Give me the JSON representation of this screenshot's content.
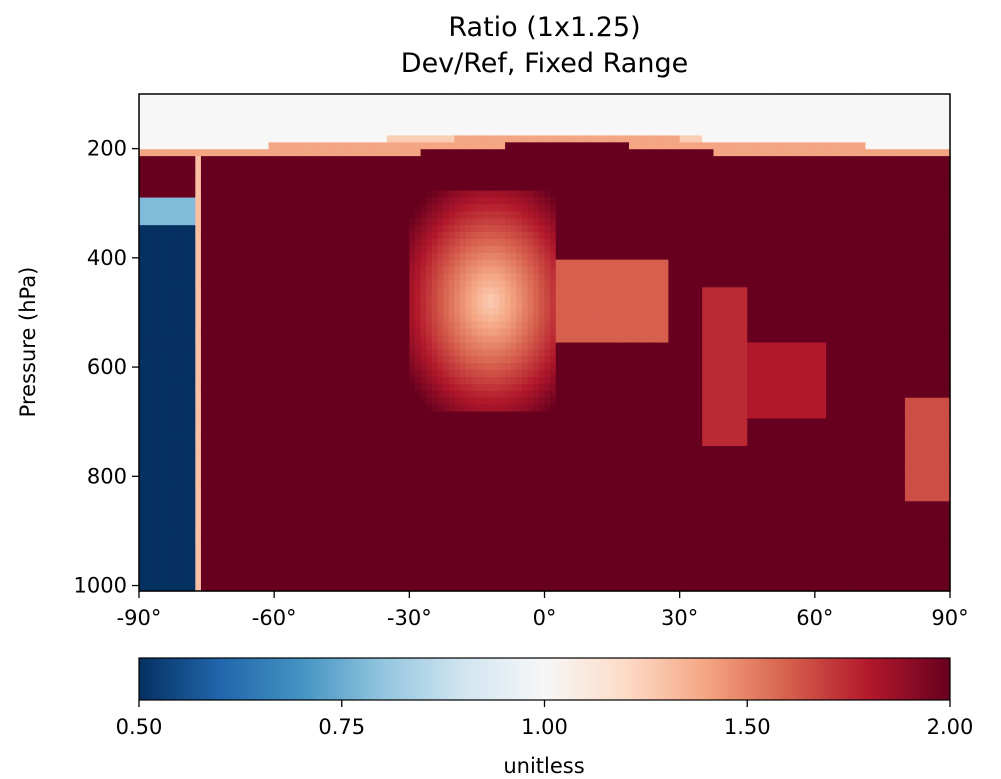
{
  "chart_data": {
    "type": "heatmap",
    "title": "Ratio (1x1.25)",
    "subtitle": "Dev/Ref, Fixed Range",
    "ylabel": "Pressure (hPa)",
    "xlabel": "",
    "x_ticks": [
      "-90°",
      "-60°",
      "-30°",
      "0°",
      "30°",
      "60°",
      "90°"
    ],
    "x_tick_values": [
      -90,
      -60,
      -30,
      0,
      30,
      60,
      90
    ],
    "y_ticks": [
      "200",
      "400",
      "600",
      "800",
      "1000"
    ],
    "y_tick_values": [
      200,
      400,
      600,
      800,
      1000
    ],
    "xlim": [
      -90,
      90
    ],
    "ylim": [
      1010,
      100
    ],
    "colorbar": {
      "label": "unitless",
      "ticks": [
        "0.50",
        "0.75",
        "1.00",
        "1.50",
        "2.00"
      ],
      "range": [
        0.5,
        2.0
      ],
      "colormap": "RdBu_r"
    },
    "colors": {
      "low": "#053061",
      "mid": "#f7f7f7",
      "high": "#67001f"
    },
    "regions": [
      {
        "desc": "upper layer",
        "lat": [
          -90,
          90
        ],
        "p": [
          100,
          200
        ],
        "value": 1.0
      },
      {
        "desc": "bulk",
        "lat": [
          -90,
          90
        ],
        "p": [
          200,
          1010
        ],
        "value": 2.0
      },
      {
        "desc": "south polar low",
        "lat": [
          -90,
          -78
        ],
        "p": [
          340,
          1010
        ],
        "value": 0.5
      },
      {
        "desc": "tropical lower ratio",
        "lat": [
          -30,
          0
        ],
        "p": [
          280,
          680
        ],
        "value": 1.35
      },
      {
        "desc": "midlat patch",
        "lat": [
          35,
          60
        ],
        "p": [
          460,
          750
        ],
        "value": 1.75
      },
      {
        "desc": "north polar patch",
        "lat": [
          80,
          90
        ],
        "p": [
          650,
          840
        ],
        "value": 1.7
      }
    ]
  }
}
